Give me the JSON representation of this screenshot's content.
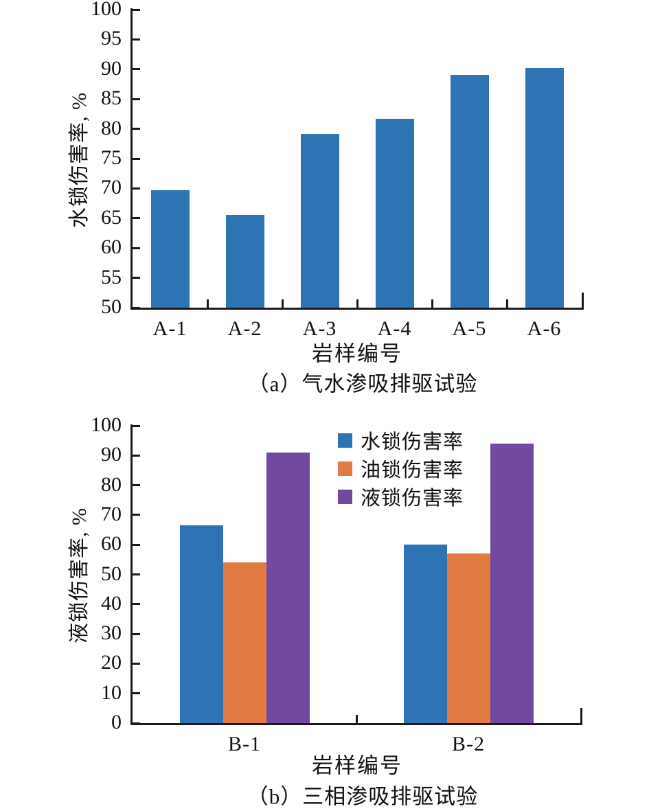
{
  "figure": {
    "background": "#ffffff"
  },
  "colors": {
    "axis": "#1a1a1a",
    "text": "#111111",
    "blue": "#2E74B5",
    "orange": "#E27B41",
    "purple": "#7149A0"
  },
  "chart_data": [
    {
      "type": "bar",
      "panel_label": "a",
      "caption": "（a）气水渗吸排驱试验",
      "categories": [
        "A-1",
        "A-2",
        "A-3",
        "A-4",
        "A-5",
        "A-6"
      ],
      "values": [
        69.7,
        65.5,
        79.2,
        81.7,
        89.1,
        90.2
      ],
      "xlabel": "岩样编号",
      "ylabel": "水锁伤害率, %",
      "ylim": [
        50,
        100
      ],
      "ytick_step": 5,
      "bar_color": "#2E74B5",
      "grid": false,
      "legend": null
    },
    {
      "type": "bar",
      "panel_label": "b",
      "caption": "（b）三相渗吸排驱试验",
      "categories": [
        "B-1",
        "B-2"
      ],
      "series": [
        {
          "name": "水锁伤害率",
          "color": "#2E74B5",
          "values": [
            66.5,
            60.0
          ]
        },
        {
          "name": "油锁伤害率",
          "color": "#E27B41",
          "values": [
            54.0,
            57.0
          ]
        },
        {
          "name": "液锁伤害率",
          "color": "#7149A0",
          "values": [
            91.0,
            94.0
          ]
        }
      ],
      "xlabel": "岩样编号",
      "ylabel": "液锁伤害率, %",
      "ylim": [
        0,
        100
      ],
      "ytick_step": 10,
      "grid": false,
      "legend_position": "inside-upper-center-right"
    }
  ]
}
